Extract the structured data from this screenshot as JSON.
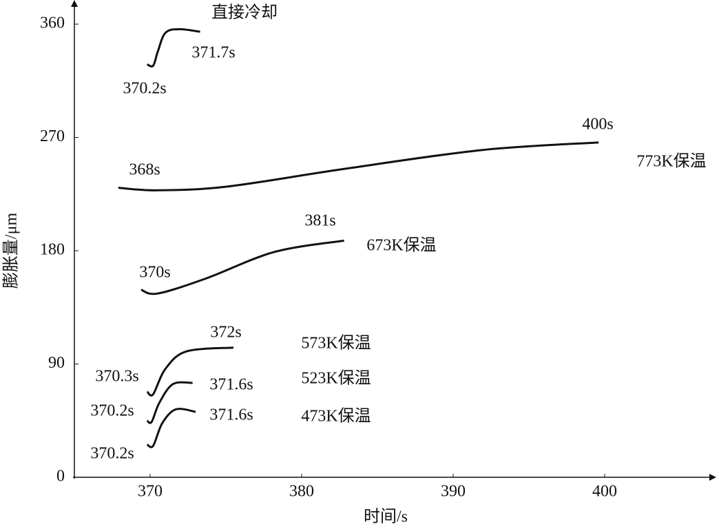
{
  "chart_data": {
    "type": "line",
    "x_label": "时间/s",
    "y_label": "膨胀量/μm",
    "xlim": [
      365,
      407
    ],
    "ylim": [
      0,
      377
    ],
    "xticks": [
      370,
      380,
      390,
      400
    ],
    "yticks": [
      0,
      90,
      180,
      270,
      360
    ],
    "grid": false,
    "series": [
      {
        "name": "直接冷却",
        "color": "#111111",
        "x": [
          369.8,
          370.2,
          370.5,
          371.0,
          371.9,
          373.3
        ],
        "values": [
          328,
          327,
          338,
          353,
          356,
          354
        ],
        "start_label": "370.2s",
        "end_label": "371.7s"
      },
      {
        "name": "773K保温",
        "color": "#111111",
        "x": [
          367.9,
          370.5,
          375.1,
          382.8,
          391.9,
          399.6
        ],
        "values": [
          230,
          228,
          231,
          245,
          260,
          266
        ],
        "start_label": "368s",
        "end_label": "400s"
      },
      {
        "name": "673K保温",
        "color": "#111111",
        "x": [
          369.4,
          370.5,
          373.7,
          378.2,
          382.8
        ],
        "values": [
          149,
          146,
          158,
          179,
          188
        ],
        "start_label": "370s",
        "end_label": "381s"
      },
      {
        "name": "573K保温",
        "color": "#111111",
        "x": [
          369.8,
          370.2,
          371.0,
          372.4,
          375.5
        ],
        "values": [
          68,
          66,
          86,
          100,
          103
        ],
        "start_label": "370.3s",
        "end_label": "372s"
      },
      {
        "name": "523K保温",
        "color": "#111111",
        "x": [
          369.8,
          370.1,
          370.6,
          371.5,
          372.8
        ],
        "values": [
          45,
          44,
          59,
          74,
          75
        ],
        "start_label": "370.2s",
        "end_label": "371.6s"
      },
      {
        "name": "473K保温",
        "color": "#111111",
        "x": [
          369.8,
          370.2,
          370.8,
          371.7,
          373.0
        ],
        "values": [
          26,
          25,
          43,
          54,
          52
        ],
        "start_label": "370.2s",
        "end_label": "371.6s"
      }
    ]
  }
}
